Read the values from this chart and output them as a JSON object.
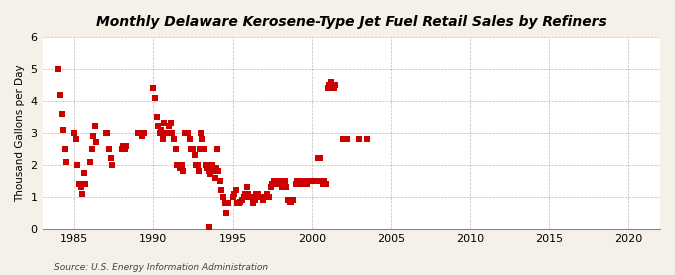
{
  "title": "Monthly Delaware Kerosene-Type Jet Fuel Retail Sales by Refiners",
  "ylabel": "Thousand Gallons per Day",
  "source": "Source: U.S. Energy Information Administration",
  "background_color": "#f5f0e8",
  "plot_bg_color": "#ffffff",
  "marker_color": "#cc0000",
  "marker_size": 4,
  "xlim": [
    1983,
    2022
  ],
  "ylim": [
    0,
    6
  ],
  "xticks": [
    1985,
    1990,
    1995,
    2000,
    2005,
    2010,
    2015,
    2020
  ],
  "yticks": [
    0,
    1,
    2,
    3,
    4,
    5,
    6
  ],
  "data_x": [
    1984.0,
    1984.1,
    1984.2,
    1984.3,
    1984.4,
    1984.5,
    1985.0,
    1985.1,
    1985.2,
    1985.3,
    1985.4,
    1985.5,
    1985.6,
    1985.7,
    1986.0,
    1986.1,
    1986.2,
    1986.3,
    1986.4,
    1987.0,
    1987.1,
    1987.2,
    1987.3,
    1987.4,
    1988.0,
    1988.1,
    1988.2,
    1988.3,
    1989.0,
    1989.1,
    1989.2,
    1989.3,
    1989.4,
    1990.0,
    1990.1,
    1990.2,
    1990.3,
    1990.4,
    1990.5,
    1990.6,
    1990.7,
    1990.8,
    1991.0,
    1991.1,
    1991.2,
    1991.3,
    1991.4,
    1991.5,
    1991.6,
    1991.7,
    1991.8,
    1991.9,
    1992.0,
    1992.1,
    1992.2,
    1992.3,
    1992.4,
    1992.5,
    1992.6,
    1992.7,
    1992.8,
    1992.9,
    1992.95,
    1993.0,
    1993.1,
    1993.2,
    1993.3,
    1993.4,
    1993.5,
    1993.6,
    1993.7,
    1993.8,
    1993.9,
    1993.95,
    1994.0,
    1994.1,
    1994.2,
    1994.3,
    1994.4,
    1994.5,
    1994.6,
    1994.7,
    1995.0,
    1995.1,
    1995.2,
    1995.3,
    1995.4,
    1995.5,
    1995.6,
    1995.7,
    1995.8,
    1995.9,
    1996.0,
    1996.1,
    1996.2,
    1996.3,
    1996.4,
    1996.5,
    1996.6,
    1996.7,
    1996.8,
    1996.9,
    1997.0,
    1997.1,
    1997.2,
    1997.3,
    1997.4,
    1997.5,
    1997.6,
    1997.7,
    1997.8,
    1997.9,
    1997.95,
    1998.0,
    1998.1,
    1998.2,
    1998.3,
    1998.4,
    1998.5,
    1998.6,
    1998.7,
    1998.8,
    1999.0,
    1999.1,
    1999.2,
    1999.3,
    1999.4,
    1999.5,
    1999.6,
    1999.7,
    1999.8,
    1999.9,
    2000.0,
    2000.1,
    2000.2,
    2000.3,
    2000.4,
    2000.5,
    2000.6,
    2000.7,
    2000.8,
    2000.9,
    2001.0,
    2001.1,
    2001.2,
    2001.3,
    2001.4,
    2001.5,
    2002.0,
    2002.1,
    2002.2,
    2003.0,
    2003.5,
    1993.5
  ],
  "data_y": [
    5.0,
    4.2,
    3.6,
    3.1,
    2.5,
    2.1,
    3.0,
    2.8,
    2.0,
    1.4,
    1.3,
    1.1,
    1.75,
    1.4,
    2.1,
    2.5,
    2.9,
    3.2,
    2.7,
    3.0,
    3.0,
    2.5,
    2.2,
    2.0,
    2.5,
    2.6,
    2.5,
    2.6,
    3.0,
    3.0,
    3.0,
    2.9,
    3.0,
    4.4,
    4.1,
    3.5,
    3.2,
    3.0,
    3.1,
    2.8,
    3.3,
    3.0,
    3.2,
    3.3,
    3.0,
    2.8,
    2.5,
    2.0,
    2.0,
    1.9,
    2.0,
    1.8,
    3.0,
    3.0,
    3.0,
    2.8,
    2.5,
    2.5,
    2.3,
    2.0,
    2.0,
    1.8,
    2.5,
    3.0,
    2.8,
    2.5,
    2.0,
    1.9,
    1.8,
    1.7,
    2.0,
    1.8,
    1.6,
    1.9,
    2.5,
    1.8,
    1.5,
    1.2,
    1.0,
    0.8,
    0.5,
    0.8,
    1.0,
    1.1,
    1.2,
    0.8,
    0.8,
    0.85,
    0.9,
    1.0,
    1.1,
    1.3,
    1.1,
    1.0,
    1.0,
    0.8,
    0.9,
    1.1,
    1.1,
    1.0,
    1.0,
    0.9,
    1.0,
    1.0,
    1.1,
    1.0,
    1.3,
    1.4,
    1.5,
    1.5,
    1.5,
    1.4,
    1.5,
    1.5,
    1.3,
    1.5,
    1.5,
    1.3,
    0.9,
    0.85,
    0.85,
    0.9,
    1.4,
    1.5,
    1.5,
    1.4,
    1.5,
    1.5,
    1.5,
    1.4,
    1.5,
    1.5,
    1.5,
    1.5,
    1.5,
    1.5,
    2.2,
    2.2,
    1.5,
    1.4,
    1.5,
    1.4,
    4.4,
    4.5,
    4.6,
    4.5,
    4.4,
    4.5,
    2.8,
    2.8,
    2.8,
    2.8,
    2.8,
    0.05
  ]
}
